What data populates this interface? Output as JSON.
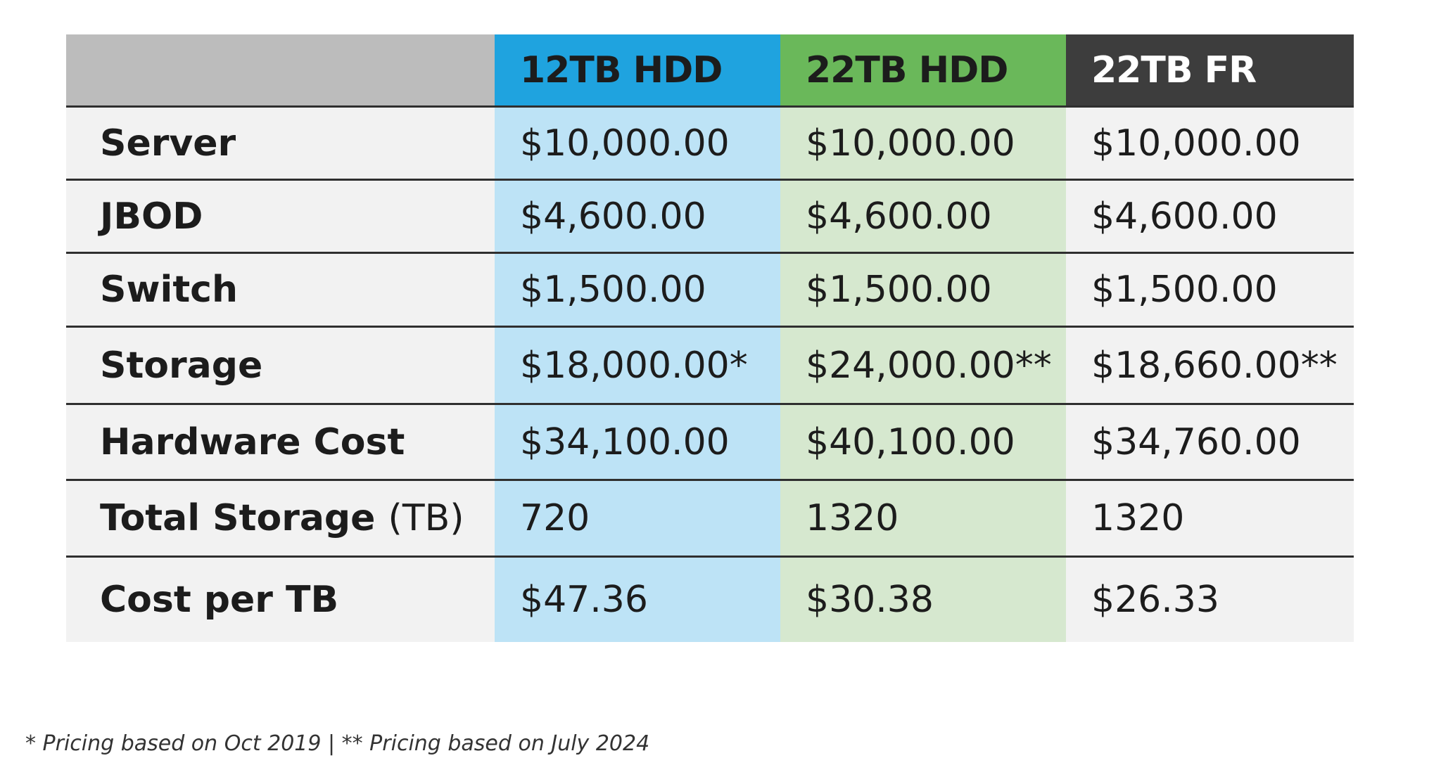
{
  "chart_data": {
    "type": "table",
    "columns": [
      {
        "label": "12TB HDD",
        "color": "#1fa3df",
        "cell_color": "#bde3f6",
        "text_color": "#1c1c1c"
      },
      {
        "label": "22TB HDD",
        "color": "#6ab85a",
        "cell_color": "#d6e8cf",
        "text_color": "#1c1c1c"
      },
      {
        "label": "22TB FR",
        "color": "#3d3d3d",
        "cell_color": "#f2f2f2",
        "text_color": "#ffffff"
      }
    ],
    "rows": [
      {
        "label": "Server",
        "unit": "",
        "values": [
          "$10,000.00",
          "$10,000.00",
          "$10,000.00"
        ],
        "row_height": 104
      },
      {
        "label": "JBOD",
        "unit": "",
        "values": [
          "$4,600.00",
          "$4,600.00",
          "$4,600.00"
        ],
        "row_height": 104
      },
      {
        "label": "Switch",
        "unit": "",
        "values": [
          "$1,500.00",
          "$1,500.00",
          "$1,500.00"
        ],
        "row_height": 105
      },
      {
        "label": "Storage",
        "unit": "",
        "values": [
          "$18,000.00*",
          "$24,000.00**",
          "$18,660.00**"
        ],
        "row_height": 110
      },
      {
        "label": "Hardware Cost",
        "unit": "",
        "values": [
          "$34,100.00",
          "$40,100.00",
          "$34,760.00"
        ],
        "row_height": 108
      },
      {
        "label": "Total Storage",
        "unit": "(TB)",
        "values": [
          "720",
          "1320",
          "1320"
        ],
        "row_height": 109
      },
      {
        "label": "Cost per TB",
        "unit": "",
        "values": [
          "$47.36",
          "$30.38",
          "$26.33"
        ],
        "row_height": 121
      }
    ]
  },
  "footnote": "* Pricing based on Oct 2019 | ** Pricing based on July 2024"
}
